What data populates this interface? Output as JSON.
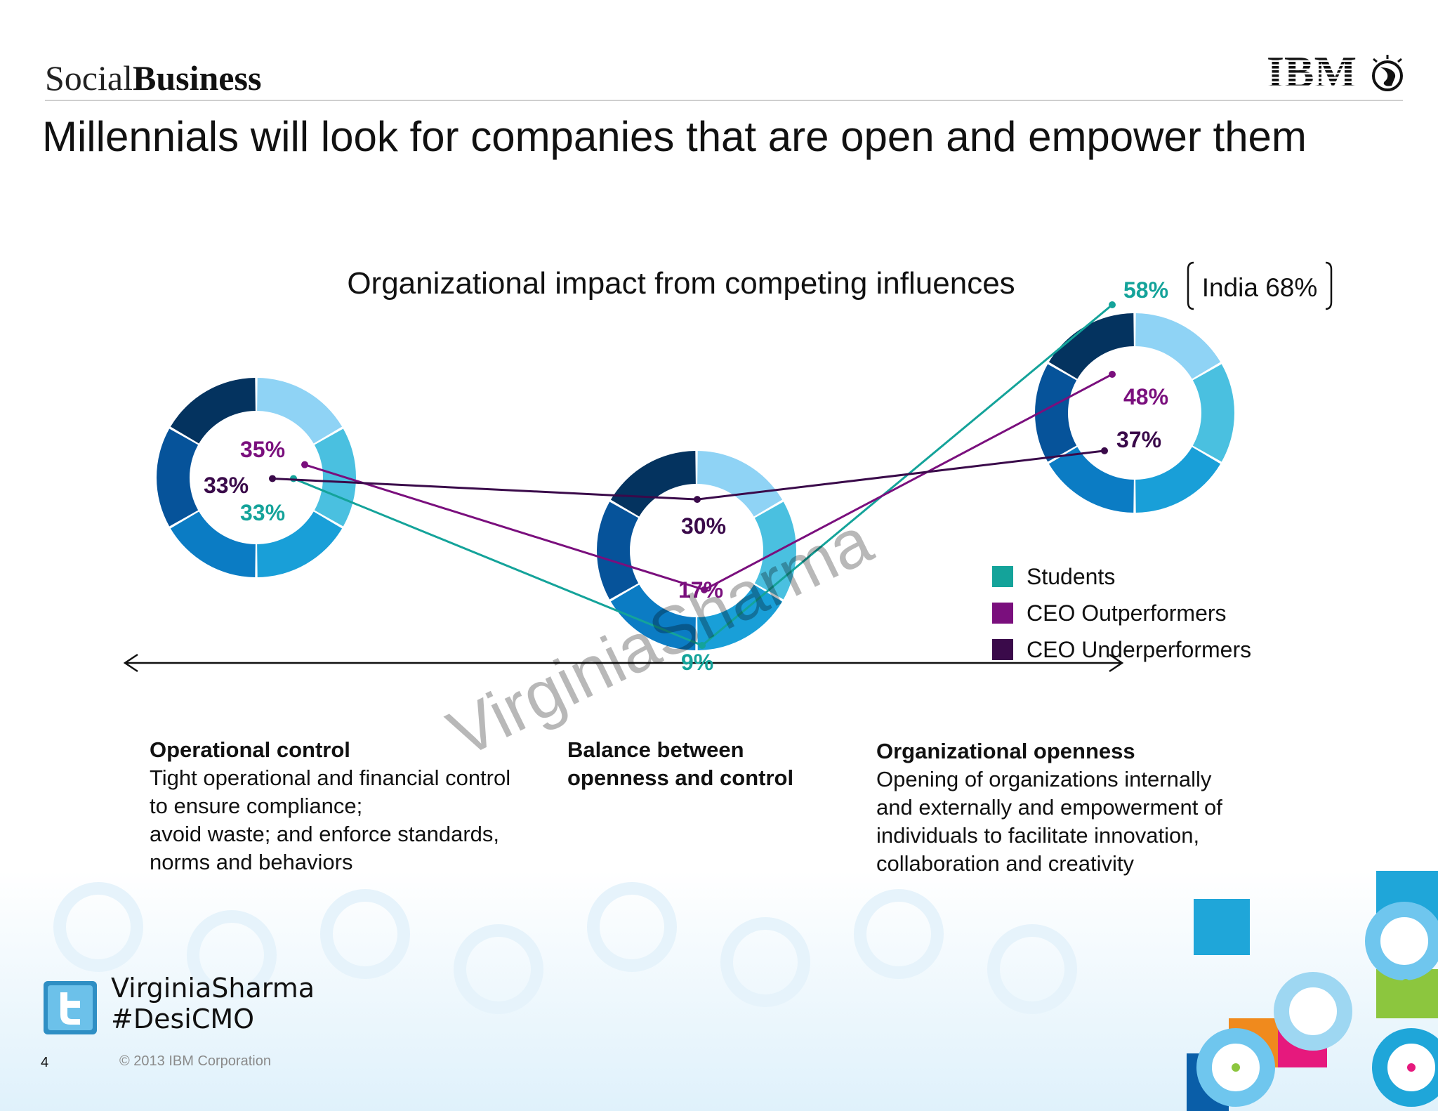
{
  "header": {
    "brand_light": "Social",
    "brand_bold": "Business",
    "logo_text": "IBM",
    "title": "Millennials will look for companies that are open and empower them"
  },
  "chart_data": {
    "type": "line",
    "title": "Organizational impact from competing influences",
    "categories": [
      "Operational control",
      "Balance between openness and control",
      "Organizational openness"
    ],
    "series": [
      {
        "name": "Students",
        "values": [
          33,
          9,
          58
        ],
        "labels": [
          "33%",
          "9%",
          "58%"
        ],
        "color": "#14a39a"
      },
      {
        "name": "CEO Outperformers",
        "values": [
          35,
          17,
          48
        ],
        "labels": [
          "35%",
          "17%",
          "48%"
        ],
        "color": "#7a0f7d"
      },
      {
        "name": "CEO Underperformers",
        "values": [
          33,
          30,
          37
        ],
        "labels": [
          "33%",
          "30%",
          "37%"
        ],
        "color": "#3a0a4a"
      }
    ],
    "annotation": "India 68%",
    "legend_position": "right",
    "grid": false
  },
  "donut_colors": [
    "#8fd3f5",
    "#4ac0e0",
    "#199fd8",
    "#0b7cc4",
    "#06539a",
    "#04335f"
  ],
  "descriptions": [
    {
      "heading": "Operational control",
      "lines": [
        "Tight operational and financial control",
        "to ensure compliance;",
        "avoid waste; and enforce standards,",
        "norms and behaviors"
      ]
    },
    {
      "heading_lines": [
        "Balance between",
        "openness and control"
      ]
    },
    {
      "heading": "Organizational openness",
      "lines": [
        "Opening of organizations internally",
        "and externally and empowerment of",
        "individuals to facilitate innovation,",
        "collaboration and creativity"
      ]
    }
  ],
  "watermark": "VirginiaSharma",
  "footer": {
    "name": "VirginiaSharma",
    "hashtag": "#DesiCMO",
    "page_number": "4",
    "copyright": "© 2013 IBM Corporation"
  }
}
